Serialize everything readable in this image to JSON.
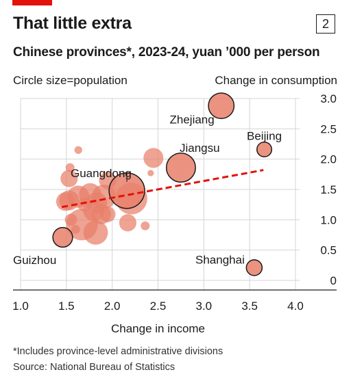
{
  "header": {
    "title": "That little extra",
    "chart_number": "2",
    "subtitle": "Chinese provinces*, 2023-24, yuan ’000 per person",
    "circle_note": "Circle size=population"
  },
  "footer": {
    "footnote": "*Includes province-level administrative divisions",
    "source": "Source: National Bureau of Statistics"
  },
  "colors": {
    "accent": "#e3120b",
    "bubble": "#e8806a",
    "trend": "#e3120b",
    "grid": "#d4d4d4"
  },
  "chart_data": {
    "type": "scatter",
    "title": "That little extra",
    "xlabel": "Change in income",
    "ylabel": "Change in consumption",
    "xlim": [
      1.0,
      4.0
    ],
    "ylim": [
      0,
      3.0
    ],
    "xticks": [
      "1.0",
      "1.5",
      "2.0",
      "2.5",
      "3.0",
      "3.5",
      "4.0"
    ],
    "yticks": [
      "0",
      "0.5",
      "1.0",
      "1.5",
      "2.0",
      "2.5",
      "3.0"
    ],
    "grid": true,
    "size_encoding": "population",
    "trendline": {
      "x": [
        1.45,
        3.65
      ],
      "y": [
        1.21,
        1.82
      ]
    },
    "points": [
      {
        "label": "Zhejiang",
        "x": 3.19,
        "y": 2.88,
        "pop": 66
      },
      {
        "label": "Beijing",
        "x": 3.66,
        "y": 2.16,
        "pop": 22
      },
      {
        "label": "Jiangsu",
        "x": 2.75,
        "y": 1.86,
        "pop": 85
      },
      {
        "label": "Guangdong",
        "x": 2.16,
        "y": 1.48,
        "pop": 127
      },
      {
        "label": "Guizhou",
        "x": 1.46,
        "y": 0.71,
        "pop": 39
      },
      {
        "label": "Shanghai",
        "x": 3.55,
        "y": 0.21,
        "pop": 25
      },
      {
        "label": "",
        "x": 2.45,
        "y": 2.02,
        "pop": 40
      },
      {
        "label": "",
        "x": 2.42,
        "y": 1.77,
        "pop": 4
      },
      {
        "label": "",
        "x": 1.63,
        "y": 2.15,
        "pop": 6
      },
      {
        "label": "",
        "x": 1.54,
        "y": 1.86,
        "pop": 8
      },
      {
        "label": "",
        "x": 1.53,
        "y": 1.68,
        "pop": 30
      },
      {
        "label": "",
        "x": 1.95,
        "y": 1.65,
        "pop": 30
      },
      {
        "label": "",
        "x": 1.76,
        "y": 1.42,
        "pop": 50
      },
      {
        "label": "",
        "x": 1.63,
        "y": 1.38,
        "pop": 50
      },
      {
        "label": "",
        "x": 1.91,
        "y": 1.38,
        "pop": 60
      },
      {
        "label": "",
        "x": 1.53,
        "y": 1.32,
        "pop": 40
      },
      {
        "label": "",
        "x": 1.49,
        "y": 1.3,
        "pop": 35
      },
      {
        "label": "",
        "x": 2.21,
        "y": 1.35,
        "pop": 101
      },
      {
        "label": "",
        "x": 1.83,
        "y": 1.28,
        "pop": 45
      },
      {
        "label": "",
        "x": 1.7,
        "y": 1.25,
        "pop": 20
      },
      {
        "label": "",
        "x": 1.8,
        "y": 1.15,
        "pop": 45
      },
      {
        "label": "",
        "x": 1.88,
        "y": 1.09,
        "pop": 40
      },
      {
        "label": "",
        "x": 1.95,
        "y": 1.09,
        "pop": 25
      },
      {
        "label": "",
        "x": 1.55,
        "y": 1.0,
        "pop": 15
      },
      {
        "label": "",
        "x": 1.67,
        "y": 0.92,
        "pop": 100
      },
      {
        "label": "",
        "x": 1.6,
        "y": 0.84,
        "pop": 8
      },
      {
        "label": "",
        "x": 1.82,
        "y": 0.79,
        "pop": 60
      },
      {
        "label": "",
        "x": 2.17,
        "y": 0.95,
        "pop": 30
      },
      {
        "label": "",
        "x": 2.36,
        "y": 0.9,
        "pop": 8
      }
    ]
  }
}
